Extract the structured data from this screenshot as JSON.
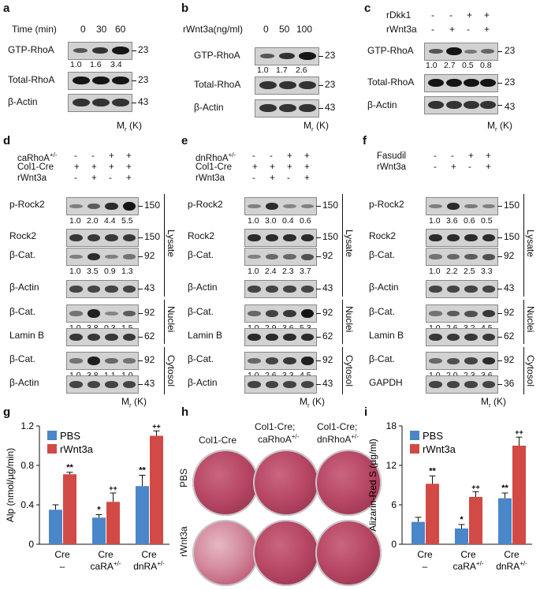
{
  "panels": {
    "a": {
      "letter": "a",
      "header_label": "Time (min)",
      "header_values": [
        "0",
        "30",
        "60"
      ],
      "rows": [
        "GTP-RhoA",
        "Total-RhoA",
        "β-Actin"
      ],
      "mw": [
        "23",
        "23",
        "43"
      ],
      "quant": [
        "1.0",
        "1.6",
        "3.4"
      ],
      "axis": "M",
      "axis_sub": "r",
      "axis_unit": "(K)"
    },
    "b": {
      "letter": "b",
      "header_label": "rWnt3a(ng/ml)",
      "header_values": [
        "0",
        "50",
        "100"
      ],
      "rows": [
        "GTP-RhoA",
        "Total-RhoA",
        "β-Actin"
      ],
      "mw": [
        "23",
        "23",
        "43"
      ],
      "quant": [
        "1.0",
        "1.7",
        "2.6"
      ],
      "axis": "M",
      "axis_sub": "r",
      "axis_unit": "(K)"
    },
    "c": {
      "letter": "c",
      "cond1": "rDkk1",
      "cond1_signs": [
        "-",
        "-",
        "+",
        "+"
      ],
      "cond2": "rWnt3a",
      "cond2_signs": [
        "-",
        "+",
        "-",
        "+"
      ],
      "rows": [
        "GTP-RhoA",
        "Total-RhoA",
        "β-Actin"
      ],
      "mw": [
        "23",
        "23",
        "43"
      ],
      "quant": [
        "1.0",
        "2.7",
        "0.5",
        "0.8"
      ],
      "axis": "M",
      "axis_sub": "r",
      "axis_unit": "(K)"
    },
    "d": {
      "letter": "d",
      "cond1": "caRhoA",
      "cond1_sup": "+/-",
      "cond1_signs": [
        "-",
        "-",
        "+",
        "+"
      ],
      "cond2": "Col1-Cre",
      "cond2_signs": [
        "+",
        "+",
        "+",
        "+"
      ],
      "cond3": "rWnt3a",
      "cond3_signs": [
        "-",
        "+",
        "-",
        "+"
      ],
      "rows": [
        "p-Rock2",
        "Rock2",
        "β-Cat.",
        "β-Actin",
        "β-Cat.",
        "Lamin B",
        "β-Cat.",
        "β-Actin"
      ],
      "mw": [
        "150",
        "150",
        "92",
        "43",
        "92",
        "62",
        "92",
        "43"
      ],
      "quant1": [
        "1.0",
        "2.0",
        "4.4",
        "5.5"
      ],
      "quant2": [
        "1.0",
        "3.5",
        "0.9",
        "1.3"
      ],
      "quant3": [
        "1.0",
        "3.8",
        "0.3",
        "1.5"
      ],
      "quant4": [
        "1.0",
        "3.8",
        "1.1",
        "1.0"
      ],
      "groups": [
        "Lysate",
        "Nuclei",
        "Cytosol"
      ],
      "axis": "M",
      "axis_sub": "r",
      "axis_unit": "(K)"
    },
    "e": {
      "letter": "e",
      "cond1": "dnRhoA",
      "cond1_sup": "+/-",
      "cond1_signs": [
        "-",
        "-",
        "+",
        "+"
      ],
      "cond2": "Col1-Cre",
      "cond2_signs": [
        "+",
        "+",
        "+",
        "+"
      ],
      "cond3": "rWnt3a",
      "cond3_signs": [
        "-",
        "+",
        "-",
        "+"
      ],
      "rows": [
        "p-Rock2",
        "Rock2",
        "β-Cat.",
        "β-Actin",
        "β-Cat.",
        "Lamin B",
        "β-Cat.",
        "β-Actin"
      ],
      "mw": [
        "150",
        "150",
        "92",
        "43",
        "92",
        "62",
        "92",
        "43"
      ],
      "quant1": [
        "1.0",
        "3.0",
        "0.4",
        "0.6"
      ],
      "quant2": [
        "1.0",
        "2.4",
        "2.3",
        "3.7"
      ],
      "quant3": [
        "1.0",
        "2.9",
        "3.6",
        "5.3"
      ],
      "quant4": [
        "1.0",
        "2.6",
        "3.3",
        "4.5"
      ],
      "groups": [
        "Lysate",
        "Nuclei",
        "Cytosol"
      ],
      "axis": "M",
      "axis_sub": "r",
      "axis_unit": "(K)"
    },
    "f": {
      "letter": "f",
      "cond1": "Fasudil",
      "cond1_signs": [
        "-",
        "-",
        "+",
        "+"
      ],
      "cond2": "rWnt3a",
      "cond2_signs": [
        "-",
        "+",
        "-",
        "+"
      ],
      "rows": [
        "p-Rock2",
        "Rock2",
        "β-Cat.",
        "β-Actin",
        "β-Cat.",
        "Lamin B",
        "β-Cat.",
        "GAPDH"
      ],
      "mw": [
        "150",
        "150",
        "92",
        "43",
        "92",
        "62",
        "92",
        "36"
      ],
      "quant1": [
        "1.0",
        "3.6",
        "0.6",
        "0.5"
      ],
      "quant2": [
        "1.0",
        "2.2",
        "2.5",
        "3.3"
      ],
      "quant3": [
        "1.0",
        "2.6",
        "3.2",
        "4.5"
      ],
      "quant4": [
        "1.0",
        "2.0",
        "2.3",
        "3.6"
      ],
      "groups": [
        "Lysate",
        "Nuclei",
        "Cytosol"
      ],
      "axis": "M",
      "axis_sub": "r",
      "axis_unit": "(K)"
    },
    "g": {
      "letter": "g"
    },
    "h": {
      "letter": "h",
      "col1": "Col1-Cre",
      "col2a": "Col1-Cre;",
      "col2b": "caRhoA",
      "col2sup": "+/-",
      "col3a": "Col1-Cre;",
      "col3b": "dnRhoA",
      "col3sup": "+/-",
      "row1": "PBS",
      "row2": "rWnt3a"
    },
    "i": {
      "letter": "i"
    }
  },
  "colors": {
    "pbs": "#4a86c8",
    "wnt": "#d24a45"
  },
  "chart_data": [
    {
      "type": "bar",
      "panel": "g",
      "ylabel": "Alp (nmol/µg/min)",
      "ylim": [
        0,
        1.2
      ],
      "yticks": [
        "0",
        "0.4",
        "0.8",
        "1.2"
      ],
      "categories": [
        "Cre\n–",
        "Cre\ncaRA+/-",
        "Cre\ndnRA+/-"
      ],
      "series": [
        {
          "name": "PBS",
          "values": [
            0.35,
            0.27,
            0.59
          ],
          "errors": [
            0.05,
            0.03,
            0.11
          ]
        },
        {
          "name": "rWnt3a",
          "values": [
            0.71,
            0.43,
            1.1
          ],
          "errors": [
            0.02,
            0.09,
            0.05
          ]
        }
      ],
      "annotations": {
        "PBS": [
          "",
          "*",
          "**"
        ],
        "rWnt3a": [
          "**",
          "++",
          "++"
        ]
      },
      "legend": "top-left"
    },
    {
      "type": "bar",
      "panel": "i",
      "ylabel": "Alizarin-Red S (µg/ml)",
      "ylim": [
        0,
        18
      ],
      "yticks": [
        "0",
        "6",
        "12",
        "18"
      ],
      "categories": [
        "Cre\n–",
        "Cre\ncaRA+/-",
        "Cre\ndnRA+/-"
      ],
      "series": [
        {
          "name": "PBS",
          "values": [
            3.4,
            2.4,
            7.0
          ],
          "errors": [
            0.7,
            0.6,
            0.8
          ]
        },
        {
          "name": "rWnt3a",
          "values": [
            9.2,
            7.2,
            15.0
          ],
          "errors": [
            1.2,
            0.8,
            1.3
          ]
        }
      ],
      "annotations": {
        "PBS": [
          "",
          "*",
          "**"
        ],
        "rWnt3a": [
          "**",
          "++",
          "++"
        ]
      },
      "legend": "top-left"
    }
  ]
}
